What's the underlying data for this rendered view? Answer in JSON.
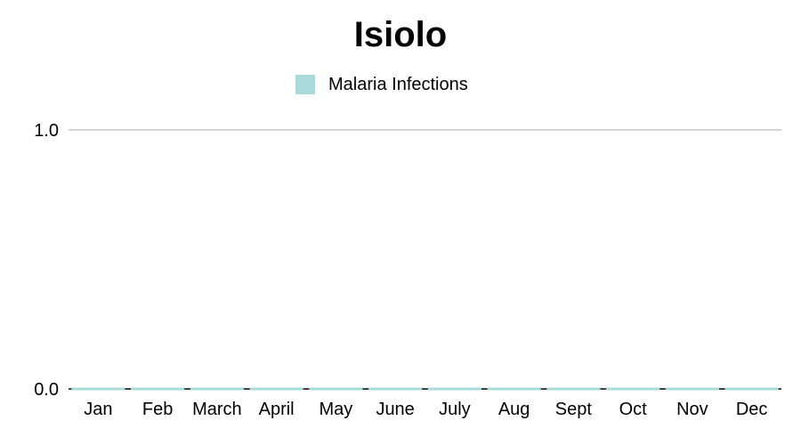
{
  "chart_data": {
    "type": "bar",
    "title": "Isiolo",
    "categories": [
      "Jan",
      "Feb",
      "March",
      "April",
      "May",
      "June",
      "July",
      "Aug",
      "Sept",
      "Oct",
      "Nov",
      "Dec"
    ],
    "series": [
      {
        "name": "Malaria Infections",
        "values": [
          0,
          0,
          0,
          0,
          0,
          0,
          0,
          0,
          0,
          0,
          0,
          0
        ],
        "color": "#a8dbd9"
      }
    ],
    "y_ticks": [
      "0.0",
      "1.0"
    ],
    "ylim": [
      0,
      1
    ],
    "xlabel": "",
    "ylabel": "",
    "legend_position": "top-center",
    "grid": true,
    "gridline_color": "#aaaaaa",
    "axis_color": "#000000"
  }
}
